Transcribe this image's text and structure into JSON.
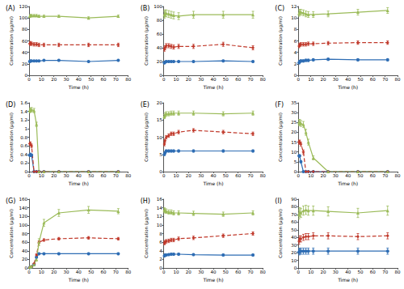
{
  "chart_data": [
    {
      "type": "line",
      "title": "(A)",
      "x_label": "Time (h)",
      "y_label": "Concentration (μg/ml)",
      "x": [
        0.5,
        1,
        2,
        4,
        6,
        8,
        12,
        24,
        48,
        72
      ],
      "xlim": [
        0,
        80
      ],
      "xticks": [
        0,
        10,
        20,
        30,
        40,
        50,
        60,
        70,
        80
      ],
      "ylim": [
        0,
        120
      ],
      "yticks": [
        0,
        20,
        40,
        60,
        80,
        100,
        120
      ],
      "grid": false,
      "series": [
        {
          "color": "#2e6db4",
          "marker": "circle",
          "line_style": "solid",
          "values": [
            24,
            25,
            25,
            25,
            25,
            25,
            26,
            26,
            24,
            26
          ],
          "error": [
            1,
            1,
            1,
            1,
            1,
            1,
            1,
            1,
            1,
            1
          ]
        },
        {
          "color": "#c0392b",
          "marker": "diamond",
          "line_style": "dashed",
          "values": [
            55,
            56,
            55,
            54,
            54,
            53,
            53,
            53,
            53,
            53
          ],
          "error": [
            3,
            3,
            3,
            3,
            3,
            3,
            3,
            3,
            3,
            3
          ]
        },
        {
          "color": "#9bbb59",
          "marker": "triangle",
          "line_style": "solid",
          "values": [
            103,
            104,
            104,
            104,
            104,
            103,
            103,
            103,
            100,
            103
          ],
          "error": [
            2,
            2,
            2,
            2,
            2,
            2,
            2,
            2,
            2,
            2
          ]
        }
      ]
    },
    {
      "type": "line",
      "title": "(B)",
      "x_label": "Time (h)",
      "y_label": "Concentration (μg/ml)",
      "x": [
        0.5,
        1,
        2,
        4,
        6,
        8,
        12,
        24,
        48,
        72
      ],
      "xlim": [
        0,
        80
      ],
      "xticks": [
        0,
        10,
        20,
        30,
        40,
        50,
        60,
        70,
        80
      ],
      "ylim": [
        0,
        100
      ],
      "yticks": [
        0,
        20,
        40,
        60,
        80,
        100
      ],
      "grid": false,
      "series": [
        {
          "color": "#2e6db4",
          "marker": "circle",
          "line_style": "solid",
          "values": [
            18,
            19,
            20,
            20,
            20,
            20,
            20,
            20,
            21,
            20
          ],
          "error": [
            1,
            1,
            1,
            1,
            1,
            1,
            1,
            1,
            1,
            1
          ]
        },
        {
          "color": "#c0392b",
          "marker": "diamond",
          "line_style": "dashed",
          "values": [
            38,
            40,
            43,
            43,
            42,
            41,
            42,
            42,
            45,
            40
          ],
          "error": [
            3,
            3,
            3,
            3,
            3,
            3,
            3,
            3,
            3,
            3
          ]
        },
        {
          "color": "#9bbb59",
          "marker": "triangle",
          "line_style": "solid",
          "values": [
            88,
            90,
            90,
            89,
            88,
            87,
            86,
            88,
            88,
            88
          ],
          "error": [
            5,
            5,
            5,
            5,
            5,
            5,
            5,
            5,
            5,
            5
          ]
        }
      ]
    },
    {
      "type": "line",
      "title": "(C)",
      "x_label": "Time (h)",
      "y_label": "Concentration (μg/ml)",
      "x": [
        0.5,
        1,
        2,
        4,
        6,
        8,
        12,
        24,
        48,
        72
      ],
      "xlim": [
        0,
        80
      ],
      "xticks": [
        0,
        10,
        20,
        30,
        40,
        50,
        60,
        70,
        80
      ],
      "ylim": [
        0,
        12
      ],
      "yticks": [
        0,
        2,
        4,
        6,
        8,
        10,
        12
      ],
      "grid": false,
      "series": [
        {
          "color": "#2e6db4",
          "marker": "circle",
          "line_style": "solid",
          "values": [
            2.2,
            2.4,
            2.5,
            2.5,
            2.6,
            2.6,
            2.7,
            2.8,
            2.7,
            2.7
          ],
          "error": [
            0.2,
            0.2,
            0.2,
            0.2,
            0.2,
            0.2,
            0.2,
            0.2,
            0.2,
            0.2
          ]
        },
        {
          "color": "#c0392b",
          "marker": "diamond",
          "line_style": "dashed",
          "values": [
            5.1,
            5.3,
            5.4,
            5.4,
            5.4,
            5.5,
            5.5,
            5.6,
            5.7,
            5.7
          ],
          "error": [
            0.3,
            0.3,
            0.3,
            0.3,
            0.3,
            0.3,
            0.3,
            0.3,
            0.3,
            0.3
          ]
        },
        {
          "color": "#9bbb59",
          "marker": "triangle",
          "line_style": "solid",
          "values": [
            10.8,
            11,
            11,
            10.9,
            10.7,
            10.6,
            10.6,
            10.7,
            11,
            11.3
          ],
          "error": [
            0.5,
            0.5,
            0.5,
            0.5,
            0.5,
            0.5,
            0.5,
            0.5,
            0.5,
            0.5
          ]
        }
      ]
    },
    {
      "type": "line",
      "title": "(D)",
      "x_label": "Time (h)",
      "y_label": "Concentration (μg/ml)",
      "x": [
        0.5,
        1,
        2,
        4,
        6,
        8,
        12,
        24,
        48,
        72
      ],
      "xlim": [
        0,
        80
      ],
      "xticks": [
        0,
        10,
        20,
        30,
        40,
        50,
        60,
        70,
        80
      ],
      "ylim": [
        0,
        1.6
      ],
      "yticks": [
        0,
        0.2,
        0.4,
        0.6,
        0.8,
        1,
        1.2,
        1.4,
        1.6
      ],
      "grid": false,
      "series": [
        {
          "color": "#2e6db4",
          "marker": "circle",
          "line_style": "solid",
          "values": [
            0.38,
            0.4,
            0.38,
            0,
            0,
            0,
            0,
            0,
            0,
            0
          ],
          "error": [
            0.03,
            0.03,
            0.03,
            0,
            0,
            0,
            0,
            0,
            0,
            0
          ]
        },
        {
          "color": "#c0392b",
          "marker": "diamond",
          "line_style": "dashed",
          "values": [
            0.65,
            0.65,
            0.6,
            0,
            0,
            0,
            0,
            0,
            0,
            0
          ],
          "error": [
            0.04,
            0.04,
            0.04,
            0,
            0,
            0,
            0,
            0,
            0,
            0
          ]
        },
        {
          "color": "#9bbb59",
          "marker": "triangle",
          "line_style": "solid",
          "values": [
            1.42,
            1.43,
            1.44,
            1.42,
            1.1,
            0,
            0,
            0,
            0,
            0
          ],
          "error": [
            0.05,
            0.05,
            0.05,
            0.05,
            0.05,
            0,
            0,
            0,
            0,
            0
          ]
        }
      ]
    },
    {
      "type": "line",
      "title": "(E)",
      "x_label": "Time (h)",
      "y_label": "Concentration (μg/ml)",
      "x": [
        0.5,
        1,
        2,
        4,
        6,
        8,
        12,
        24,
        48,
        72
      ],
      "xlim": [
        0,
        80
      ],
      "xticks": [
        0,
        10,
        20,
        30,
        40,
        50,
        60,
        70,
        80
      ],
      "ylim": [
        0,
        20
      ],
      "yticks": [
        0,
        5,
        10,
        15,
        20
      ],
      "grid": false,
      "series": [
        {
          "color": "#2e6db4",
          "marker": "circle",
          "line_style": "solid",
          "values": [
            5,
            5.5,
            6,
            6,
            6,
            6,
            6,
            6,
            6,
            6
          ],
          "error": [
            0.3,
            0.3,
            0.3,
            0.3,
            0.3,
            0.3,
            0.3,
            0.3,
            0.3,
            0.3
          ]
        },
        {
          "color": "#c0392b",
          "marker": "diamond",
          "line_style": "dashed",
          "values": [
            8,
            9,
            10,
            10.5,
            11,
            11,
            11.5,
            12,
            11.5,
            11
          ],
          "error": [
            0.5,
            0.5,
            0.5,
            0.5,
            0.5,
            0.5,
            0.5,
            0.5,
            0.5,
            0.5
          ]
        },
        {
          "color": "#9bbb59",
          "marker": "triangle",
          "line_style": "solid",
          "values": [
            16,
            16.5,
            16.8,
            16.8,
            17,
            17,
            17,
            17,
            16.8,
            17
          ],
          "error": [
            0.6,
            0.6,
            0.6,
            0.6,
            0.6,
            0.6,
            0.6,
            0.6,
            0.6,
            0.6
          ]
        }
      ]
    },
    {
      "type": "line",
      "title": "(F)",
      "x_label": "Time (h)",
      "y_label": "Concentration (μg/ml)",
      "x": [
        0.5,
        1,
        2,
        4,
        6,
        8,
        12,
        24,
        48,
        72
      ],
      "xlim": [
        0,
        80
      ],
      "xticks": [
        0,
        10,
        20,
        30,
        40,
        50,
        60,
        70,
        80
      ],
      "ylim": [
        0,
        35
      ],
      "yticks": [
        0,
        5,
        10,
        15,
        20,
        25,
        30,
        35
      ],
      "grid": false,
      "series": [
        {
          "color": "#2e6db4",
          "marker": "circle",
          "line_style": "solid",
          "values": [
            8,
            8,
            5,
            0,
            0,
            0,
            0,
            0,
            0,
            0
          ],
          "error": [
            0.5,
            0.5,
            0.5,
            0,
            0,
            0,
            0,
            0,
            0,
            0
          ]
        },
        {
          "color": "#c0392b",
          "marker": "diamond",
          "line_style": "dashed",
          "values": [
            15,
            15,
            14,
            10,
            0,
            0,
            0,
            0,
            0,
            0
          ],
          "error": [
            1,
            1,
            1,
            1,
            0,
            0,
            0,
            0,
            0,
            0
          ]
        },
        {
          "color": "#9bbb59",
          "marker": "triangle",
          "line_style": "solid",
          "values": [
            25,
            25,
            24.5,
            24,
            20,
            15,
            7,
            0,
            0,
            0
          ],
          "error": [
            1.5,
            1.5,
            1.5,
            1.5,
            1.5,
            1.5,
            1,
            0,
            0,
            0
          ]
        }
      ]
    },
    {
      "type": "line",
      "title": "(G)",
      "x_label": "Time (h)",
      "y_label": "Concentration (μg/ml)",
      "x": [
        0.5,
        1,
        2,
        4,
        6,
        8,
        12,
        24,
        48,
        72
      ],
      "xlim": [
        0,
        80
      ],
      "xticks": [
        0,
        10,
        20,
        30,
        40,
        50,
        60,
        70,
        80
      ],
      "ylim": [
        0,
        160
      ],
      "yticks": [
        0,
        20,
        40,
        60,
        80,
        100,
        120,
        140,
        160
      ],
      "grid": false,
      "series": [
        {
          "color": "#2e6db4",
          "marker": "circle",
          "line_style": "solid",
          "values": [
            1,
            2,
            3,
            8,
            25,
            33,
            33,
            33,
            33,
            33
          ],
          "error": [
            0.5,
            0.5,
            0.5,
            1,
            2,
            2,
            2,
            2,
            2,
            2
          ]
        },
        {
          "color": "#c0392b",
          "marker": "diamond",
          "line_style": "dashed",
          "values": [
            1,
            2,
            3,
            10,
            30,
            60,
            65,
            68,
            70,
            68
          ],
          "error": [
            0.5,
            0.5,
            0.5,
            1,
            3,
            3,
            3,
            3,
            3,
            3
          ]
        },
        {
          "color": "#9bbb59",
          "marker": "triangle",
          "line_style": "solid",
          "values": [
            2,
            3,
            4,
            8,
            20,
            60,
            105,
            128,
            135,
            132
          ],
          "error": [
            1,
            1,
            1,
            2,
            4,
            8,
            8,
            8,
            8,
            6
          ]
        }
      ]
    },
    {
      "type": "line",
      "title": "(H)",
      "x_label": "Time (h)",
      "y_label": "Concentration (μg/ml)",
      "x": [
        0.5,
        1,
        2,
        4,
        6,
        8,
        12,
        24,
        48,
        72
      ],
      "xlim": [
        0,
        80
      ],
      "xticks": [
        0,
        10,
        20,
        30,
        40,
        50,
        60,
        70,
        80
      ],
      "ylim": [
        0,
        16
      ],
      "yticks": [
        0,
        2,
        4,
        6,
        8,
        10,
        12,
        14,
        16
      ],
      "grid": false,
      "series": [
        {
          "color": "#2e6db4",
          "marker": "circle",
          "line_style": "solid",
          "values": [
            2.8,
            3,
            3,
            3.1,
            3.2,
            3.2,
            3.2,
            3.1,
            3,
            3
          ],
          "error": [
            0.2,
            0.2,
            0.2,
            0.2,
            0.2,
            0.2,
            0.2,
            0.2,
            0.2,
            0.2
          ]
        },
        {
          "color": "#c0392b",
          "marker": "diamond",
          "line_style": "dashed",
          "values": [
            5.8,
            6,
            6.2,
            6.3,
            6.5,
            6.5,
            6.8,
            7,
            7.5,
            8
          ],
          "error": [
            0.4,
            0.4,
            0.4,
            0.4,
            0.4,
            0.4,
            0.4,
            0.4,
            0.4,
            0.4
          ]
        },
        {
          "color": "#9bbb59",
          "marker": "triangle",
          "line_style": "solid",
          "values": [
            13.5,
            13.3,
            13.2,
            13,
            13,
            12.8,
            12.8,
            12.7,
            12.5,
            12.8
          ],
          "error": [
            0.5,
            0.5,
            0.5,
            0.5,
            0.5,
            0.5,
            0.5,
            0.5,
            0.5,
            0.5
          ]
        }
      ]
    },
    {
      "type": "line",
      "title": "(I)",
      "x_label": "Time (h)",
      "y_label": "Concentration (μg/ml)",
      "x": [
        0.5,
        1,
        2,
        4,
        6,
        8,
        12,
        24,
        48,
        72
      ],
      "xlim": [
        0,
        80
      ],
      "xticks": [
        0,
        10,
        20,
        30,
        40,
        50,
        60,
        70,
        80
      ],
      "ylim": [
        0,
        90
      ],
      "yticks": [
        0,
        10,
        20,
        30,
        40,
        50,
        60,
        70,
        80,
        90
      ],
      "grid": false,
      "series": [
        {
          "color": "#2e6db4",
          "marker": "circle",
          "line_style": "solid",
          "values": [
            21,
            22,
            22,
            22,
            22,
            22,
            22,
            22,
            22,
            22
          ],
          "error": [
            4,
            4,
            4,
            4,
            4,
            4,
            4,
            4,
            4,
            4
          ]
        },
        {
          "color": "#c0392b",
          "marker": "diamond",
          "line_style": "dashed",
          "values": [
            35,
            38,
            38,
            40,
            41,
            41,
            42,
            42,
            41,
            42
          ],
          "error": [
            4,
            4,
            4,
            4,
            4,
            4,
            4,
            4,
            4,
            4
          ]
        },
        {
          "color": "#9bbb59",
          "marker": "triangle",
          "line_style": "solid",
          "values": [
            70,
            73,
            72,
            75,
            76,
            75,
            75,
            74,
            72,
            75
          ],
          "error": [
            6,
            6,
            6,
            6,
            6,
            6,
            6,
            6,
            6,
            6
          ]
        }
      ]
    }
  ]
}
